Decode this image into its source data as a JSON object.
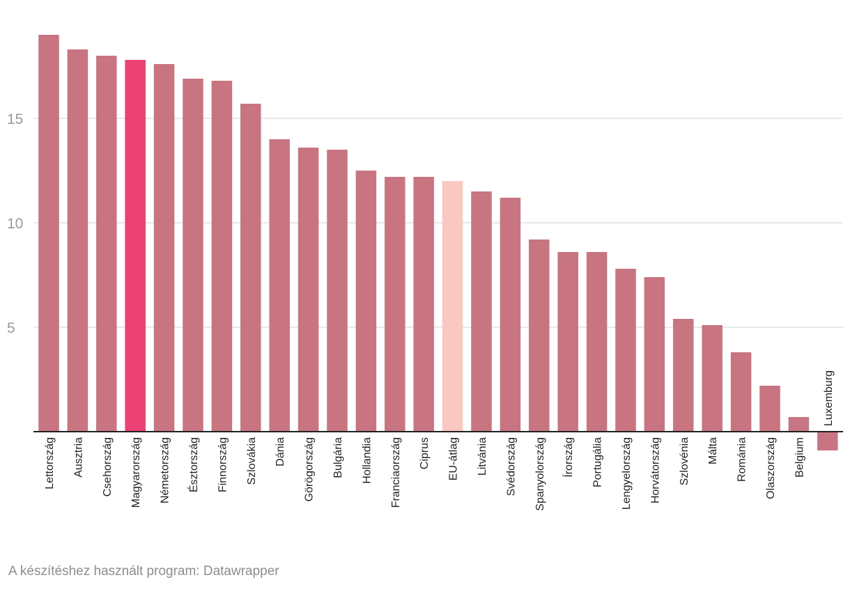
{
  "footer": {
    "credit": "A készítéshez használt program: Datawrapper"
  },
  "colors": {
    "default": "#c97581",
    "highlight": "#eb4174",
    "average": "#fbc8c1",
    "grid": "#e0e0e0",
    "axis": "#222222"
  },
  "chart_data": {
    "type": "bar",
    "orientation": "vertical",
    "title": "",
    "xlabel": "",
    "ylabel": "",
    "ylim": [
      -0.9,
      19
    ],
    "yticks": [
      5,
      10,
      15
    ],
    "grid": true,
    "categories": [
      "Lettország",
      "Ausztria",
      "Csehország",
      "Magyarország",
      "Németország",
      "Észtország",
      "Finnország",
      "Szlovákia",
      "Dánia",
      "Görögország",
      "Bulgária",
      "Hollandia",
      "Franciaország",
      "Ciprus",
      "EU-átlag",
      "Litvánia",
      "Svédország",
      "Spanyolország",
      "Írország",
      "Portugália",
      "Lengyelország",
      "Horvátország",
      "Szlovénia",
      "Málta",
      "Románia",
      "Olaszország",
      "Belgium",
      "Luxemburg"
    ],
    "values": [
      19.0,
      18.3,
      18.0,
      17.8,
      17.6,
      16.9,
      16.8,
      15.7,
      14.0,
      13.6,
      13.5,
      12.5,
      12.2,
      12.2,
      12.0,
      11.5,
      11.2,
      9.2,
      8.6,
      8.6,
      7.8,
      7.4,
      5.4,
      5.1,
      3.8,
      2.2,
      0.7,
      -0.9
    ],
    "highlight": {
      "Magyarország": "highlight",
      "EU-átlag": "average"
    }
  }
}
